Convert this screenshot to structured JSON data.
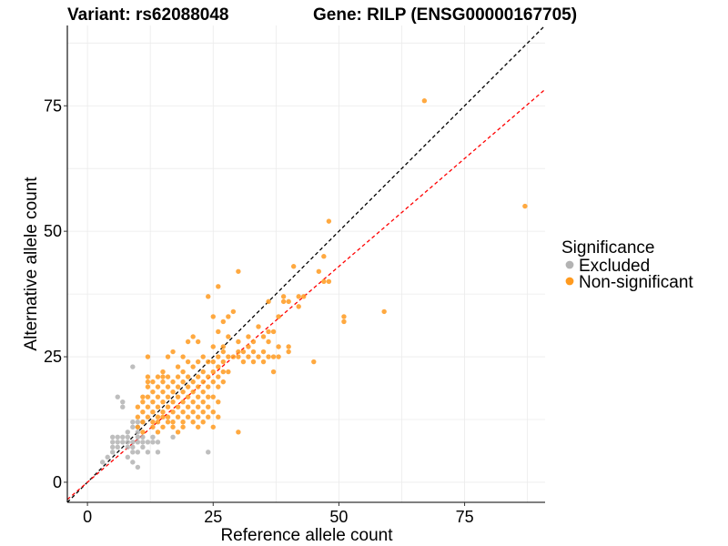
{
  "chart_data": {
    "type": "scatter",
    "title_left": "Variant: rs62088048",
    "title_right": "Gene: RILP (ENSG00000167705)",
    "xlabel": "Reference allele count",
    "ylabel": "Alternative allele count",
    "xlim": [
      -4,
      91
    ],
    "ylim": [
      -4,
      91
    ],
    "xticks": [
      0,
      25,
      50,
      75
    ],
    "yticks": [
      0,
      25,
      50,
      75
    ],
    "xtick_labels": [
      "0",
      "25",
      "50",
      "75"
    ],
    "ytick_labels": [
      "0",
      "25",
      "50",
      "75"
    ],
    "grid": true,
    "reference_lines": [
      {
        "name": "identity",
        "slope": 1.0,
        "intercept": 0,
        "color": "#000000",
        "style": "dashed"
      },
      {
        "name": "fit",
        "slope": 0.86,
        "intercept": 0,
        "color": "#ff0000",
        "style": "dashed"
      }
    ],
    "legend": {
      "title": "Significance",
      "position": "right",
      "entries": [
        {
          "label": "Excluded",
          "color": "#b3b3b3"
        },
        {
          "label": "Non-significant",
          "color": "#ff9a1f"
        }
      ]
    },
    "series": [
      {
        "name": "Excluded",
        "color": "#b3b3b3",
        "points": [
          [
            3,
            4
          ],
          [
            4,
            5
          ],
          [
            5,
            6
          ],
          [
            5,
            7
          ],
          [
            5,
            8
          ],
          [
            5,
            9
          ],
          [
            6,
            7
          ],
          [
            6,
            8
          ],
          [
            6,
            9
          ],
          [
            6,
            17
          ],
          [
            7,
            8
          ],
          [
            7,
            9
          ],
          [
            7,
            15
          ],
          [
            7,
            16
          ],
          [
            8,
            5
          ],
          [
            8,
            7
          ],
          [
            8,
            8
          ],
          [
            8,
            9
          ],
          [
            8,
            10
          ],
          [
            9,
            4
          ],
          [
            9,
            6
          ],
          [
            9,
            7
          ],
          [
            9,
            8
          ],
          [
            9,
            11
          ],
          [
            9,
            12
          ],
          [
            9,
            23
          ],
          [
            10,
            3
          ],
          [
            10,
            6
          ],
          [
            10,
            8
          ],
          [
            10,
            9
          ],
          [
            10,
            10
          ],
          [
            10,
            11
          ],
          [
            10,
            12
          ],
          [
            11,
            7
          ],
          [
            11,
            8
          ],
          [
            11,
            9
          ],
          [
            11,
            12
          ],
          [
            12,
            6
          ],
          [
            12,
            8
          ],
          [
            13,
            8
          ],
          [
            13,
            9
          ],
          [
            14,
            6
          ],
          [
            14,
            8
          ],
          [
            17,
            9
          ],
          [
            24,
            6
          ]
        ]
      },
      {
        "name": "Non-significant",
        "color": "#ff9a1f",
        "points": [
          [
            10,
            11
          ],
          [
            10,
            13
          ],
          [
            10,
            15
          ],
          [
            11,
            10
          ],
          [
            11,
            12
          ],
          [
            11,
            14
          ],
          [
            11,
            16
          ],
          [
            11,
            17
          ],
          [
            12,
            13
          ],
          [
            12,
            15
          ],
          [
            12,
            17
          ],
          [
            12,
            19
          ],
          [
            12,
            20
          ],
          [
            12,
            21
          ],
          [
            12,
            25
          ],
          [
            13,
            11
          ],
          [
            13,
            12
          ],
          [
            13,
            14
          ],
          [
            13,
            16
          ],
          [
            13,
            18
          ],
          [
            13,
            20
          ],
          [
            14,
            10
          ],
          [
            14,
            12
          ],
          [
            14,
            13
          ],
          [
            14,
            15
          ],
          [
            14,
            17
          ],
          [
            14,
            19
          ],
          [
            14,
            21
          ],
          [
            15,
            11
          ],
          [
            15,
            13
          ],
          [
            15,
            14
          ],
          [
            15,
            16
          ],
          [
            15,
            18
          ],
          [
            15,
            20
          ],
          [
            15,
            21
          ],
          [
            15,
            22
          ],
          [
            16,
            12
          ],
          [
            16,
            13
          ],
          [
            16,
            15
          ],
          [
            16,
            17
          ],
          [
            16,
            19
          ],
          [
            16,
            21
          ],
          [
            16,
            25
          ],
          [
            17,
            11
          ],
          [
            17,
            12
          ],
          [
            17,
            14
          ],
          [
            17,
            16
          ],
          [
            17,
            18
          ],
          [
            17,
            20
          ],
          [
            17,
            26
          ],
          [
            18,
            10
          ],
          [
            18,
            13
          ],
          [
            18,
            15
          ],
          [
            18,
            17
          ],
          [
            18,
            19
          ],
          [
            18,
            21
          ],
          [
            18,
            23
          ],
          [
            19,
            11
          ],
          [
            19,
            12
          ],
          [
            19,
            14
          ],
          [
            19,
            16
          ],
          [
            19,
            18
          ],
          [
            19,
            20
          ],
          [
            19,
            22
          ],
          [
            19,
            25
          ],
          [
            20,
            13
          ],
          [
            20,
            15
          ],
          [
            20,
            17
          ],
          [
            20,
            19
          ],
          [
            20,
            21
          ],
          [
            20,
            24
          ],
          [
            20,
            28
          ],
          [
            21,
            12
          ],
          [
            21,
            14
          ],
          [
            21,
            16
          ],
          [
            21,
            18
          ],
          [
            21,
            20
          ],
          [
            21,
            23
          ],
          [
            21,
            29
          ],
          [
            22,
            11
          ],
          [
            22,
            13
          ],
          [
            22,
            15
          ],
          [
            22,
            17
          ],
          [
            22,
            19
          ],
          [
            22,
            21
          ],
          [
            22,
            24
          ],
          [
            22,
            28
          ],
          [
            23,
            12
          ],
          [
            23,
            14
          ],
          [
            23,
            16
          ],
          [
            23,
            18
          ],
          [
            23,
            20
          ],
          [
            23,
            22
          ],
          [
            23,
            25
          ],
          [
            24,
            13
          ],
          [
            24,
            15
          ],
          [
            24,
            17
          ],
          [
            24,
            19
          ],
          [
            24,
            21
          ],
          [
            24,
            24
          ],
          [
            24,
            37
          ],
          [
            25,
            11
          ],
          [
            25,
            14
          ],
          [
            25,
            17
          ],
          [
            25,
            20
          ],
          [
            25,
            22
          ],
          [
            25,
            24
          ],
          [
            25,
            27
          ],
          [
            25,
            33
          ],
          [
            26,
            13
          ],
          [
            26,
            16
          ],
          [
            26,
            19
          ],
          [
            26,
            21
          ],
          [
            26,
            23
          ],
          [
            26,
            25
          ],
          [
            26,
            30
          ],
          [
            26,
            39
          ],
          [
            27,
            20
          ],
          [
            27,
            22
          ],
          [
            27,
            24
          ],
          [
            27,
            26
          ],
          [
            27,
            27
          ],
          [
            27,
            32
          ],
          [
            28,
            22
          ],
          [
            28,
            25
          ],
          [
            28,
            29
          ],
          [
            28,
            33
          ],
          [
            29,
            25
          ],
          [
            29,
            34
          ],
          [
            30,
            10
          ],
          [
            30,
            25
          ],
          [
            30,
            26
          ],
          [
            30,
            28
          ],
          [
            30,
            42
          ],
          [
            31,
            24
          ],
          [
            31,
            26
          ],
          [
            32,
            25
          ],
          [
            32,
            27
          ],
          [
            32,
            29
          ],
          [
            33,
            24
          ],
          [
            33,
            26
          ],
          [
            33,
            28
          ],
          [
            34,
            25
          ],
          [
            34,
            31
          ],
          [
            35,
            24
          ],
          [
            35,
            26
          ],
          [
            35,
            29
          ],
          [
            36,
            25
          ],
          [
            36,
            28
          ],
          [
            36,
            30
          ],
          [
            36,
            36
          ],
          [
            37,
            22
          ],
          [
            37,
            25
          ],
          [
            37,
            30
          ],
          [
            38,
            25
          ],
          [
            38,
            27
          ],
          [
            38,
            33
          ],
          [
            39,
            36
          ],
          [
            39,
            37
          ],
          [
            40,
            26
          ],
          [
            40,
            27
          ],
          [
            40,
            36
          ],
          [
            41,
            43
          ],
          [
            42,
            35
          ],
          [
            42,
            37
          ],
          [
            43,
            37
          ],
          [
            45,
            24
          ],
          [
            46,
            42
          ],
          [
            47,
            40
          ],
          [
            47,
            45
          ],
          [
            48,
            40
          ],
          [
            48,
            52
          ],
          [
            51,
            32
          ],
          [
            51,
            33
          ],
          [
            59,
            34
          ],
          [
            67,
            76
          ],
          [
            87,
            55
          ]
        ]
      }
    ]
  }
}
